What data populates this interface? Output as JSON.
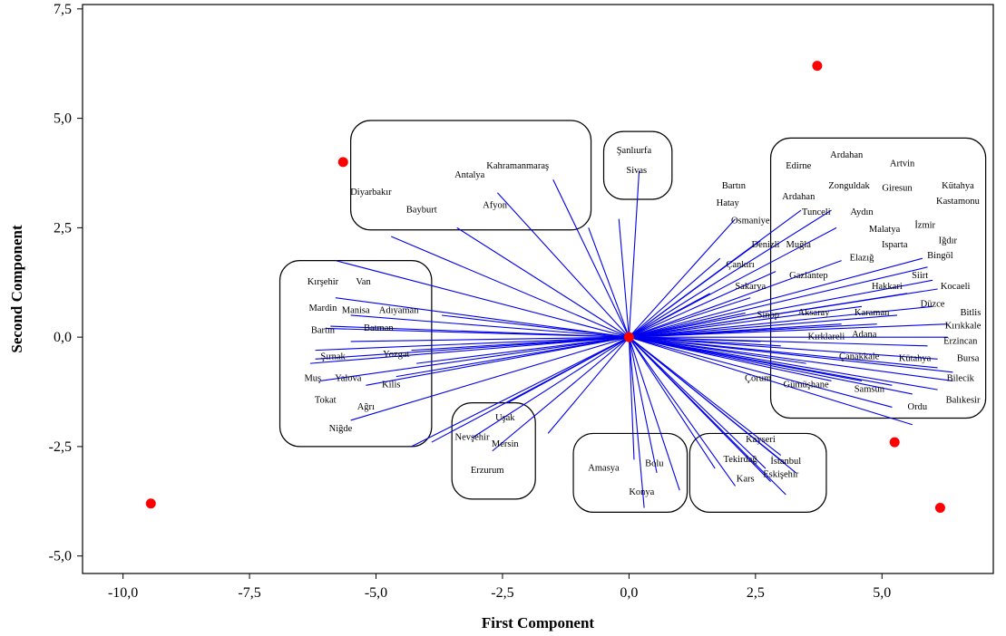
{
  "chart_data": {
    "type": "scatter",
    "subtype": "biplot-loading-vectors",
    "xlabel": "First Component",
    "ylabel": "Second Component",
    "xlim": [
      -10.8,
      7.2
    ],
    "ylim": [
      -5.4,
      7.6
    ],
    "x_ticks": [
      -10.0,
      -7.5,
      -5.0,
      -2.5,
      0.0,
      2.5,
      5.0
    ],
    "x_tick_labels": [
      "-10,0",
      "-7,5",
      "-5,0",
      "-2,5",
      "0,0",
      "2,5",
      "5,0"
    ],
    "y_ticks": [
      -5.0,
      -2.5,
      0.0,
      2.5,
      5.0,
      7.5
    ],
    "y_tick_labels": [
      "-5,0",
      "-2,5",
      "0,0",
      "2,5",
      "5,0",
      "7,5"
    ],
    "grid": false,
    "colors": {
      "vector": "#0000ee",
      "point": "#ff0000",
      "frame": "#000000",
      "group_box": "#000000"
    },
    "points": [
      {
        "x": 0.0,
        "y": 0.0
      },
      {
        "x": -5.65,
        "y": 4.0
      },
      {
        "x": 3.72,
        "y": 6.2
      },
      {
        "x": -9.45,
        "y": -3.8
      },
      {
        "x": 5.25,
        "y": -2.4
      },
      {
        "x": 6.15,
        "y": -3.9
      }
    ],
    "vector_ends": [
      [
        -4.7,
        2.3
      ],
      [
        -3.4,
        2.5
      ],
      [
        -2.6,
        3.3
      ],
      [
        -1.5,
        3.6
      ],
      [
        -0.8,
        2.5
      ],
      [
        -0.2,
        2.7
      ],
      [
        0.2,
        3.8
      ],
      [
        -5.8,
        1.75
      ],
      [
        -5.8,
        0.9
      ],
      [
        -5.9,
        0.25
      ],
      [
        -6.2,
        -0.5
      ],
      [
        -6.1,
        -1.0
      ],
      [
        -5.5,
        -1.9
      ],
      [
        -6.3,
        -0.6
      ],
      [
        -5.2,
        -1.1
      ],
      [
        -6.0,
        0.2
      ],
      [
        -4.6,
        -0.9
      ],
      [
        -3.7,
        0.5
      ],
      [
        -4.2,
        -0.6
      ],
      [
        -6.2,
        -0.3
      ],
      [
        -5.5,
        0.5
      ],
      [
        -5.5,
        -0.1
      ],
      [
        -4.3,
        -0.3
      ],
      [
        -4.3,
        -2.5
      ],
      [
        -3.9,
        -2.4
      ],
      [
        -3.1,
        -2.3
      ],
      [
        -2.7,
        -2.6
      ],
      [
        -2.4,
        -1.5
      ],
      [
        -1.6,
        -2.2
      ],
      [
        0.3,
        -3.9
      ],
      [
        0.1,
        -2.8
      ],
      [
        0.55,
        -3.1
      ],
      [
        1.0,
        -3.5
      ],
      [
        2.1,
        -3.4
      ],
      [
        1.7,
        -3.0
      ],
      [
        2.8,
        -3.3
      ],
      [
        2.7,
        -3.0
      ],
      [
        3.1,
        -3.6
      ],
      [
        3.3,
        -3.1
      ],
      [
        3.0,
        -2.7
      ],
      [
        3.1,
        -2.9
      ],
      [
        1.8,
        1.8
      ],
      [
        2.1,
        2.7
      ],
      [
        2.6,
        2.2
      ],
      [
        1.6,
        1.0
      ],
      [
        3.4,
        2.9
      ],
      [
        4.0,
        2.9
      ],
      [
        4.1,
        2.5
      ],
      [
        2.3,
        0.55
      ],
      [
        2.9,
        1.5
      ],
      [
        4.2,
        1.75
      ],
      [
        5.8,
        1.8
      ],
      [
        5.9,
        1.6
      ],
      [
        6.0,
        1.3
      ],
      [
        6.1,
        1.1
      ],
      [
        6.0,
        0.7
      ],
      [
        5.3,
        0.5
      ],
      [
        4.9,
        0.3
      ],
      [
        6.3,
        0.3
      ],
      [
        6.3,
        0.0
      ],
      [
        5.9,
        -0.2
      ],
      [
        6.1,
        -0.5
      ],
      [
        6.1,
        -0.7
      ],
      [
        6.4,
        -0.8
      ],
      [
        6.4,
        -1.0
      ],
      [
        6.1,
        -1.2
      ],
      [
        5.6,
        -1.3
      ],
      [
        5.2,
        -1.6
      ],
      [
        5.6,
        -2.0
      ],
      [
        4.6,
        -1.0
      ],
      [
        3.5,
        -0.6
      ],
      [
        4.0,
        -1.0
      ],
      [
        3.0,
        -0.2
      ],
      [
        4.2,
        0.3
      ],
      [
        2.4,
        0.9
      ],
      [
        3.3,
        0.2
      ],
      [
        2.6,
        -0.1
      ],
      [
        5.2,
        -1.1
      ],
      [
        4.6,
        0.7
      ],
      [
        5.5,
        1.0
      ]
    ],
    "group_boxes": [
      {
        "x0": -5.5,
        "y0": 2.45,
        "x1": -0.75,
        "y1": 4.95
      },
      {
        "x0": -0.5,
        "y0": 3.15,
        "x1": 0.85,
        "y1": 4.7
      },
      {
        "x0": 2.8,
        "y0": -1.85,
        "x1": 7.05,
        "y1": 4.55
      },
      {
        "x0": -6.9,
        "y0": -2.5,
        "x1": -3.9,
        "y1": 1.75
      },
      {
        "x0": -3.5,
        "y0": -3.7,
        "x1": -1.85,
        "y1": -1.5
      },
      {
        "x0": -1.1,
        "y0": -4.0,
        "x1": 1.15,
        "y1": -2.2
      },
      {
        "x0": 1.2,
        "y0": -4.0,
        "x1": 3.9,
        "y1": -2.2
      }
    ],
    "labels": [
      {
        "text": "Kahramanmaraş",
        "x": -2.2,
        "y": 3.85
      },
      {
        "text": "Antalya",
        "x": -3.15,
        "y": 3.65
      },
      {
        "text": "Diyarbakır",
        "x": -5.1,
        "y": 3.25
      },
      {
        "text": "Afyon",
        "x": -2.65,
        "y": 2.95
      },
      {
        "text": "Bayburt",
        "x": -4.1,
        "y": 2.85
      },
      {
        "text": "Şanlıurfa",
        "x": 0.1,
        "y": 4.2
      },
      {
        "text": "Sivas",
        "x": 0.15,
        "y": 3.75
      },
      {
        "text": "Ardahan",
        "x": 4.3,
        "y": 4.1
      },
      {
        "text": "Edirne",
        "x": 3.35,
        "y": 3.85
      },
      {
        "text": "Artvin",
        "x": 5.4,
        "y": 3.9
      },
      {
        "text": "Kütahya",
        "x": 6.5,
        "y": 3.4
      },
      {
        "text": "Bartın",
        "x": 2.07,
        "y": 3.4
      },
      {
        "text": "Giresun",
        "x": 5.3,
        "y": 3.35
      },
      {
        "text": "Zonguldak",
        "x": 4.35,
        "y": 3.4
      },
      {
        "text": "Kastamonu",
        "x": 6.5,
        "y": 3.05
      },
      {
        "text": "Ardahan",
        "x": 3.35,
        "y": 3.15
      },
      {
        "text": "Hatay",
        "x": 1.95,
        "y": 3.0
      },
      {
        "text": "Tunceli",
        "x": 3.7,
        "y": 2.8
      },
      {
        "text": "Aydın",
        "x": 4.6,
        "y": 2.8
      },
      {
        "text": "Osmaniye",
        "x": 2.4,
        "y": 2.6
      },
      {
        "text": "İzmir",
        "x": 5.85,
        "y": 2.5
      },
      {
        "text": "Malatya",
        "x": 5.05,
        "y": 2.4
      },
      {
        "text": "Iğdır",
        "x": 6.3,
        "y": 2.15
      },
      {
        "text": "Denizli",
        "x": 2.7,
        "y": 2.05
      },
      {
        "text": "Muğla",
        "x": 3.35,
        "y": 2.05
      },
      {
        "text": "Isparta",
        "x": 5.25,
        "y": 2.05
      },
      {
        "text": "Bingöl",
        "x": 6.15,
        "y": 1.8
      },
      {
        "text": "Elazığ",
        "x": 4.6,
        "y": 1.75
      },
      {
        "text": "Çankırı",
        "x": 2.2,
        "y": 1.6
      },
      {
        "text": "Gaziantep",
        "x": 3.55,
        "y": 1.35
      },
      {
        "text": "Siirt",
        "x": 5.75,
        "y": 1.35
      },
      {
        "text": "Sakarya",
        "x": 2.4,
        "y": 1.1
      },
      {
        "text": "Hakkari",
        "x": 5.1,
        "y": 1.1
      },
      {
        "text": "Kocaeli",
        "x": 6.45,
        "y": 1.1
      },
      {
        "text": "Düzce",
        "x": 6.0,
        "y": 0.7
      },
      {
        "text": "Bitlis",
        "x": 6.75,
        "y": 0.5
      },
      {
        "text": "Sinop",
        "x": 2.75,
        "y": 0.45
      },
      {
        "text": "Aksaray",
        "x": 3.65,
        "y": 0.5
      },
      {
        "text": "Karaman",
        "x": 4.8,
        "y": 0.5
      },
      {
        "text": "Kırıkkale",
        "x": 6.6,
        "y": 0.2
      },
      {
        "text": "Adana",
        "x": 4.65,
        "y": 0.0
      },
      {
        "text": "Kırklareli",
        "x": 3.9,
        "y": -0.05
      },
      {
        "text": "Erzincan",
        "x": 6.55,
        "y": -0.15
      },
      {
        "text": "Kırşehir",
        "x": -6.05,
        "y": 1.2
      },
      {
        "text": "Van",
        "x": -5.25,
        "y": 1.2
      },
      {
        "text": "Mardin",
        "x": -6.05,
        "y": 0.6
      },
      {
        "text": "Manisa",
        "x": -5.4,
        "y": 0.55
      },
      {
        "text": "Adıyaman",
        "x": -4.55,
        "y": 0.55
      },
      {
        "text": "Bartın",
        "x": -6.05,
        "y": 0.1
      },
      {
        "text": "Batman",
        "x": -4.95,
        "y": 0.15
      },
      {
        "text": "Yozgat",
        "x": -4.6,
        "y": -0.45
      },
      {
        "text": "Şırnak",
        "x": -5.85,
        "y": -0.5
      },
      {
        "text": "Muş",
        "x": -6.25,
        "y": -1.0
      },
      {
        "text": "Yalova",
        "x": -5.55,
        "y": -1.0
      },
      {
        "text": "Kilis",
        "x": -4.7,
        "y": -1.15
      },
      {
        "text": "Tokat",
        "x": -6.0,
        "y": -1.5
      },
      {
        "text": "Ağrı",
        "x": -5.2,
        "y": -1.65
      },
      {
        "text": "Niğde",
        "x": -5.7,
        "y": -2.15
      },
      {
        "text": "Uşak",
        "x": -2.45,
        "y": -1.9
      },
      {
        "text": "Nevşehir",
        "x": -3.1,
        "y": -2.35
      },
      {
        "text": "Mersin",
        "x": -2.45,
        "y": -2.5
      },
      {
        "text": "Erzurum",
        "x": -2.8,
        "y": -3.1
      },
      {
        "text": "Amasya",
        "x": -0.5,
        "y": -3.05
      },
      {
        "text": "Bolu",
        "x": 0.5,
        "y": -2.95
      },
      {
        "text": "Konya",
        "x": 0.25,
        "y": -3.6
      },
      {
        "text": "Kayseri",
        "x": 2.6,
        "y": -2.4
      },
      {
        "text": "Tekirdağ",
        "x": 2.2,
        "y": -2.85
      },
      {
        "text": "İstanbul",
        "x": 3.1,
        "y": -2.9
      },
      {
        "text": "Kars",
        "x": 2.3,
        "y": -3.3
      },
      {
        "text": "Eskişehir",
        "x": 3.0,
        "y": -3.2
      },
      {
        "text": "Çanakkale",
        "x": 4.55,
        "y": -0.5
      },
      {
        "text": "Kütahya",
        "x": 5.65,
        "y": -0.55
      },
      {
        "text": "Bursa",
        "x": 6.7,
        "y": -0.55
      },
      {
        "text": "Bilecik",
        "x": 6.55,
        "y": -1.0
      },
      {
        "text": "Çorum",
        "x": 2.55,
        "y": -1.0
      },
      {
        "text": "Gümüşhane",
        "x": 3.5,
        "y": -1.15
      },
      {
        "text": "Samsun",
        "x": 4.75,
        "y": -1.25
      },
      {
        "text": "Balıkesir",
        "x": 6.6,
        "y": -1.5
      },
      {
        "text": "Ordu",
        "x": 5.7,
        "y": -1.65
      }
    ]
  }
}
